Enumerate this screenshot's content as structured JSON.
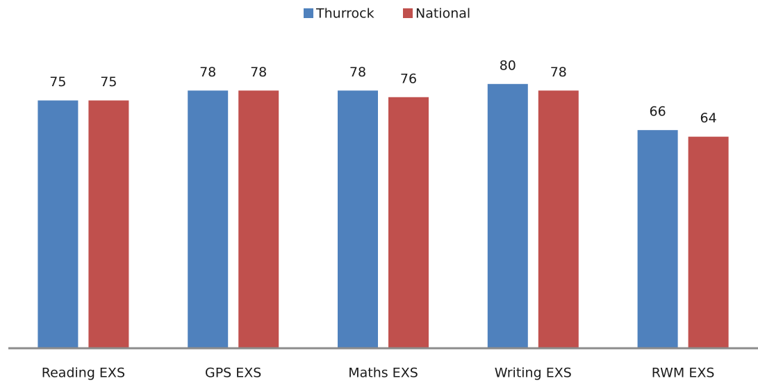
{
  "chart_data": {
    "type": "bar",
    "categories": [
      "Reading EXS",
      "GPS EXS",
      "Maths EXS",
      "Writing EXS",
      "RWM EXS"
    ],
    "series": [
      {
        "name": "Thurrock",
        "color": "#4f81bd",
        "values": [
          75,
          78,
          78,
          80,
          66
        ]
      },
      {
        "name": "National",
        "color": "#c0504d",
        "values": [
          75,
          78,
          76,
          78,
          64
        ]
      }
    ],
    "legend": "top"
  }
}
